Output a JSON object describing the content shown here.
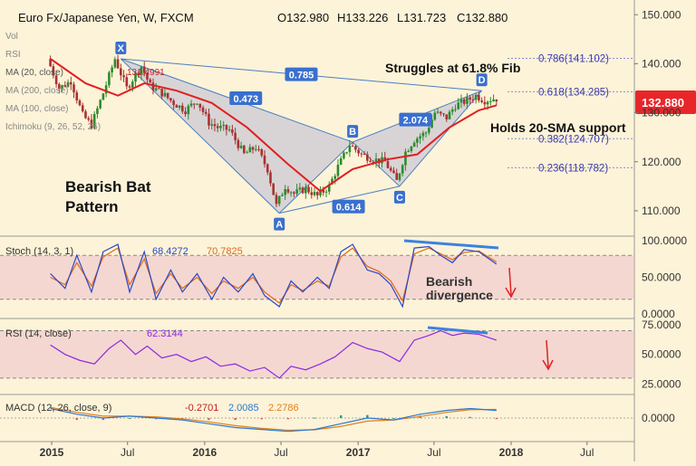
{
  "header": {
    "symbol": "Euro Fx/Japanese Yen, W, FXCM",
    "ohlc": {
      "open": "O132.980",
      "high": "H133.226",
      "low": "L131.723",
      "close": "C132.880"
    }
  },
  "indicator_labels": {
    "vol": "Vol",
    "rsi_overlay": "RSI",
    "ma20": "MA (20, close)",
    "ma20_value": "131.4991",
    "ma200": "MA (200, close)",
    "ma100": "MA (100, close)",
    "ichimoku": "Ichimoku (9, 26, 52, 26)"
  },
  "annotations": {
    "struggles": "Struggles at 61.8% Fib",
    "holds": "Holds 20-SMA support",
    "bat_line1": "Bearish Bat",
    "bat_line2": "Pattern",
    "bearish": "Bearish",
    "divergence": "divergence"
  },
  "colors": {
    "background": "#fdf3d8",
    "candle_up": "#2e8b2e",
    "candle_down": "#a83232",
    "sma20": "#e02020",
    "pattern_fill": "#b9b9d6",
    "pattern_line": "#4a7fc0",
    "price_badge": "#e8262a",
    "stoch_k": "#2848c8",
    "stoch_d": "#e06a1a",
    "rsi": "#8a2be2",
    "band": "#e9b5c9",
    "divergence_line": "#3b82e0",
    "arrow": "#e02020",
    "macd": "#2a78d0",
    "macd_signal": "#e08020"
  },
  "chart_data": [
    {
      "type": "candlestick",
      "title": "Euro Fx/Japanese Yen, W, FXCM",
      "x_ticks": [
        "2015",
        "Jul",
        "2016",
        "Jul",
        "2017",
        "Jul",
        "2018",
        "Jul"
      ],
      "y_ticks": [
        "110.000",
        "120.000",
        "130.000",
        "140.000",
        "150.000"
      ],
      "ylim": [
        105,
        153
      ],
      "last_price": "132.880",
      "price_path": [
        [
          "2014-12-29",
          141.0
        ],
        [
          "2015-01-26",
          135.0
        ],
        [
          "2015-02-23",
          136.5
        ],
        [
          "2015-03-23",
          129.5
        ],
        [
          "2015-04-13",
          127.5
        ],
        [
          "2015-05-11",
          134.0
        ],
        [
          "2015-06-08",
          141.0
        ],
        [
          "2015-07-06",
          135.0
        ],
        [
          "2015-08-10",
          139.5
        ],
        [
          "2015-08-31",
          135.5
        ],
        [
          "2015-09-28",
          134.0
        ],
        [
          "2015-10-26",
          132.0
        ],
        [
          "2015-11-23",
          130.5
        ],
        [
          "2015-12-21",
          132.5
        ],
        [
          "2016-01-18",
          128.0
        ],
        [
          "2016-02-08",
          127.0
        ],
        [
          "2016-03-07",
          126.5
        ],
        [
          "2016-04-11",
          121.5
        ],
        [
          "2016-05-09",
          123.0
        ],
        [
          "2016-06-06",
          118.5
        ],
        [
          "2016-06-27",
          111.0
        ],
        [
          "2016-07-18",
          115.0
        ],
        [
          "2016-08-08",
          113.5
        ],
        [
          "2016-09-05",
          114.5
        ],
        [
          "2016-10-03",
          113.0
        ],
        [
          "2016-10-31",
          115.0
        ],
        [
          "2016-11-21",
          119.0
        ],
        [
          "2016-12-19",
          123.5
        ],
        [
          "2017-01-16",
          121.5
        ],
        [
          "2017-02-13",
          120.5
        ],
        [
          "2017-03-13",
          120.0
        ],
        [
          "2017-04-10",
          116.0
        ],
        [
          "2017-05-01",
          122.0
        ],
        [
          "2017-05-22",
          124.5
        ],
        [
          "2017-06-19",
          126.0
        ],
        [
          "2017-07-10",
          130.0
        ],
        [
          "2017-08-07",
          129.0
        ],
        [
          "2017-08-28",
          131.5
        ],
        [
          "2017-09-25",
          132.5
        ],
        [
          "2017-10-16",
          133.5
        ],
        [
          "2017-11-06",
          132.5
        ],
        [
          "2017-11-27",
          132.88
        ]
      ],
      "series": [
        {
          "name": "MA (20, close)",
          "points": [
            [
              "2014-12-29",
              141.0
            ],
            [
              "2015-03-23",
              136.0
            ],
            [
              "2015-06-08",
              133.5
            ],
            [
              "2015-08-10",
              136.0
            ],
            [
              "2015-10-26",
              134.5
            ],
            [
              "2016-01-18",
              132.0
            ],
            [
              "2016-04-11",
              127.0
            ],
            [
              "2016-07-18",
              119.5
            ],
            [
              "2016-10-03",
              114.0
            ],
            [
              "2016-12-19",
              118.5
            ],
            [
              "2017-03-13",
              120.5
            ],
            [
              "2017-05-22",
              121.5
            ],
            [
              "2017-08-07",
              127.0
            ],
            [
              "2017-10-16",
              130.5
            ],
            [
              "2017-11-27",
              131.5
            ]
          ]
        }
      ],
      "pattern": {
        "name": "Bearish Bat",
        "points": [
          {
            "label": "X",
            "date": "2015-06-15",
            "price": 141.0
          },
          {
            "label": "A",
            "date": "2016-06-27",
            "price": 109.5
          },
          {
            "label": "B",
            "date": "2016-12-19",
            "price": 124.0
          },
          {
            "label": "C",
            "date": "2017-04-10",
            "price": 115.0
          },
          {
            "label": "D",
            "date": "2017-10-23",
            "price": 134.5
          }
        ],
        "ratios": [
          "0.785",
          "0.473",
          "0.614",
          "2.074"
        ]
      },
      "fib_levels": [
        {
          "label": "0.786(141.102)",
          "price": 141.102
        },
        {
          "label": "0.618(134.285)",
          "price": 134.285
        },
        {
          "label": "0.382(124.707)",
          "price": 124.707
        },
        {
          "label": "0.236(118.782)",
          "price": 118.782
        }
      ]
    },
    {
      "type": "line",
      "title": "Stoch (14, 3, 1)",
      "y_ticks": [
        "0.0000",
        "50.0000",
        "100.0000"
      ],
      "ylim": [
        0,
        100
      ],
      "band": [
        20,
        80
      ],
      "legend_values": [
        "68.4272",
        "70.7825"
      ],
      "series": [
        {
          "name": "%K",
          "points": [
            [
              "2014-12-29",
              55
            ],
            [
              "2015-02-02",
              35
            ],
            [
              "2015-03-02",
              80
            ],
            [
              "2015-04-06",
              30
            ],
            [
              "2015-05-04",
              85
            ],
            [
              "2015-06-08",
              95
            ],
            [
              "2015-07-06",
              30
            ],
            [
              "2015-08-10",
              85
            ],
            [
              "2015-09-07",
              20
            ],
            [
              "2015-10-12",
              60
            ],
            [
              "2015-11-09",
              30
            ],
            [
              "2015-12-14",
              55
            ],
            [
              "2016-01-18",
              20
            ],
            [
              "2016-02-15",
              50
            ],
            [
              "2016-03-21",
              30
            ],
            [
              "2016-04-25",
              55
            ],
            [
              "2016-05-23",
              25
            ],
            [
              "2016-06-27",
              10
            ],
            [
              "2016-07-25",
              45
            ],
            [
              "2016-08-22",
              30
            ],
            [
              "2016-09-26",
              50
            ],
            [
              "2016-10-24",
              35
            ],
            [
              "2016-11-21",
              85
            ],
            [
              "2016-12-19",
              95
            ],
            [
              "2017-01-23",
              60
            ],
            [
              "2017-02-20",
              55
            ],
            [
              "2017-03-20",
              40
            ],
            [
              "2017-04-17",
              10
            ],
            [
              "2017-05-15",
              90
            ],
            [
              "2017-06-19",
              92
            ],
            [
              "2017-07-17",
              80
            ],
            [
              "2017-08-14",
              70
            ],
            [
              "2017-09-11",
              88
            ],
            [
              "2017-10-16",
              85
            ],
            [
              "2017-11-27",
              68
            ]
          ]
        },
        {
          "name": "%D",
          "points": [
            [
              "2014-12-29",
              50
            ],
            [
              "2015-02-02",
              40
            ],
            [
              "2015-03-02",
              70
            ],
            [
              "2015-04-06",
              38
            ],
            [
              "2015-05-04",
              78
            ],
            [
              "2015-06-08",
              90
            ],
            [
              "2015-07-06",
              40
            ],
            [
              "2015-08-10",
              75
            ],
            [
              "2015-09-07",
              28
            ],
            [
              "2015-10-12",
              55
            ],
            [
              "2015-11-09",
              35
            ],
            [
              "2015-12-14",
              50
            ],
            [
              "2016-01-18",
              28
            ],
            [
              "2016-02-15",
              45
            ],
            [
              "2016-03-21",
              35
            ],
            [
              "2016-04-25",
              50
            ],
            [
              "2016-05-23",
              30
            ],
            [
              "2016-06-27",
              15
            ],
            [
              "2016-07-25",
              40
            ],
            [
              "2016-08-22",
              32
            ],
            [
              "2016-09-26",
              45
            ],
            [
              "2016-10-24",
              38
            ],
            [
              "2016-11-21",
              78
            ],
            [
              "2016-12-19",
              90
            ],
            [
              "2017-01-23",
              65
            ],
            [
              "2017-02-20",
              58
            ],
            [
              "2017-03-20",
              45
            ],
            [
              "2017-04-17",
              18
            ],
            [
              "2017-05-15",
              82
            ],
            [
              "2017-06-19",
              90
            ],
            [
              "2017-07-17",
              82
            ],
            [
              "2017-08-14",
              74
            ],
            [
              "2017-09-11",
              84
            ],
            [
              "2017-10-16",
              86
            ],
            [
              "2017-11-27",
              71
            ]
          ]
        }
      ]
    },
    {
      "type": "line",
      "title": "RSI (14, close)",
      "y_ticks": [
        "25.0000",
        "50.0000",
        "75.0000"
      ],
      "ylim": [
        20,
        78
      ],
      "band": [
        30,
        70
      ],
      "legend_values": [
        "62.3144"
      ],
      "series": [
        {
          "name": "RSI",
          "points": [
            [
              "2014-12-29",
              58
            ],
            [
              "2015-02-02",
              50
            ],
            [
              "2015-03-09",
              45
            ],
            [
              "2015-04-13",
              42
            ],
            [
              "2015-05-18",
              55
            ],
            [
              "2015-06-15",
              62
            ],
            [
              "2015-07-20",
              50
            ],
            [
              "2015-08-17",
              57
            ],
            [
              "2015-09-21",
              47
            ],
            [
              "2015-10-26",
              50
            ],
            [
              "2015-11-30",
              44
            ],
            [
              "2016-01-04",
              48
            ],
            [
              "2016-02-08",
              40
            ],
            [
              "2016-03-14",
              42
            ],
            [
              "2016-04-18",
              36
            ],
            [
              "2016-05-23",
              39
            ],
            [
              "2016-06-27",
              30
            ],
            [
              "2016-07-25",
              40
            ],
            [
              "2016-08-29",
              37
            ],
            [
              "2016-10-03",
              42
            ],
            [
              "2016-11-07",
              48
            ],
            [
              "2016-12-19",
              60
            ],
            [
              "2017-01-23",
              55
            ],
            [
              "2017-02-27",
              52
            ],
            [
              "2017-04-10",
              44
            ],
            [
              "2017-05-15",
              62
            ],
            [
              "2017-06-19",
              66
            ],
            [
              "2017-07-17",
              70
            ],
            [
              "2017-08-14",
              66
            ],
            [
              "2017-09-11",
              68
            ],
            [
              "2017-10-16",
              67
            ],
            [
              "2017-11-27",
              62
            ]
          ]
        }
      ]
    },
    {
      "type": "line",
      "title": "MACD (12, 26, close, 9)",
      "y_ticks": [
        "0.0000"
      ],
      "ylim": [
        -5,
        5
      ],
      "legend_values": [
        "-0.2701",
        "2.0085",
        "2.2786"
      ],
      "series": [
        {
          "name": "MACD",
          "points": [
            [
              "2014-12-29",
              2.5
            ],
            [
              "2015-03-02",
              1.0
            ],
            [
              "2015-05-04",
              0.0
            ],
            [
              "2015-07-06",
              0.5
            ],
            [
              "2015-09-07",
              0.0
            ],
            [
              "2015-11-09",
              -0.5
            ],
            [
              "2016-01-11",
              -1.5
            ],
            [
              "2016-03-14",
              -2.5
            ],
            [
              "2016-05-16",
              -3.0
            ],
            [
              "2016-07-18",
              -3.5
            ],
            [
              "2016-09-19",
              -3.0
            ],
            [
              "2016-11-21",
              -1.5
            ],
            [
              "2017-01-23",
              0.0
            ],
            [
              "2017-03-27",
              -0.5
            ],
            [
              "2017-05-29",
              1.0
            ],
            [
              "2017-07-31",
              2.0
            ],
            [
              "2017-09-25",
              2.5
            ],
            [
              "2017-11-27",
              2.0
            ]
          ]
        },
        {
          "name": "Signal",
          "points": [
            [
              "2014-12-29",
              2.8
            ],
            [
              "2015-03-02",
              1.5
            ],
            [
              "2015-05-04",
              0.5
            ],
            [
              "2015-07-06",
              0.5
            ],
            [
              "2015-09-07",
              0.3
            ],
            [
              "2015-11-09",
              -0.2
            ],
            [
              "2016-01-11",
              -1.0
            ],
            [
              "2016-03-14",
              -2.0
            ],
            [
              "2016-05-16",
              -2.7
            ],
            [
              "2016-07-18",
              -3.2
            ],
            [
              "2016-09-19",
              -3.1
            ],
            [
              "2016-11-21",
              -2.2
            ],
            [
              "2017-01-23",
              -0.8
            ],
            [
              "2017-03-27",
              -0.5
            ],
            [
              "2017-05-29",
              0.4
            ],
            [
              "2017-07-31",
              1.5
            ],
            [
              "2017-09-25",
              2.2
            ],
            [
              "2017-11-27",
              2.28
            ]
          ]
        }
      ]
    }
  ]
}
